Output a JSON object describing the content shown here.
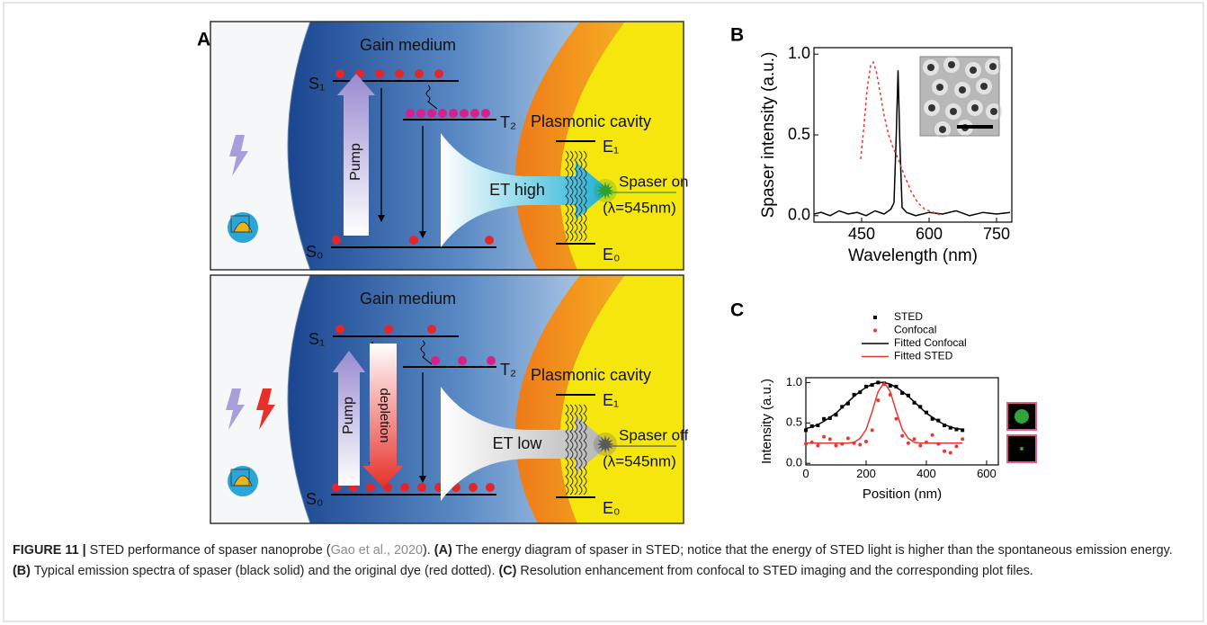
{
  "diagram": {
    "panel": "A",
    "top": {
      "gain_medium": "Gain medium",
      "s1": "S₁",
      "t2": "T₂",
      "s0": "S₀",
      "pump": "Pump",
      "et": "ET high",
      "cavity": "Plasmonic cavity",
      "e1": "E₁",
      "e0": "E₀",
      "spaser": "Spaser on",
      "wavelength": "(λ=545nm)"
    },
    "bottom": {
      "gain_medium": "Gain medium",
      "s1": "S₁",
      "t2": "T₂",
      "s0": "S₀",
      "pump": "Pump",
      "depletion": "depletion",
      "et": "ET low",
      "cavity": "Plasmonic cavity",
      "e1": "E₁",
      "e0": "E₀",
      "spaser": "Spaser off",
      "wavelength": "(λ=545nm)"
    }
  },
  "chart_data": [
    {
      "type": "line",
      "panel": "B",
      "x_label": "Wavelength (nm)",
      "y_label": "Spaser intensity (a.u.)",
      "xlim": [
        344,
        784
      ],
      "ylim": [
        -0.04,
        1.04
      ],
      "xticks": [
        450,
        600,
        750
      ],
      "yticks": [
        {
          "value": 0,
          "label": "0.0"
        },
        0.5,
        {
          "value": 1,
          "label": "1.0"
        }
      ],
      "legend": false,
      "series": [
        {
          "kind": "line",
          "color": "#000000",
          "dash": false,
          "x": [
            344,
            360,
            380,
            400,
            420,
            440,
            460,
            480,
            500,
            515,
            522,
            527,
            531,
            535,
            540,
            550,
            570,
            600,
            630,
            660,
            690,
            720,
            750,
            780
          ],
          "values": [
            0.01,
            0.02,
            0.0,
            0.03,
            0.01,
            0.02,
            0.0,
            0.03,
            0.01,
            0.04,
            0.08,
            0.5,
            0.9,
            0.45,
            0.05,
            0.02,
            0.0,
            0.02,
            0.01,
            0.03,
            0.0,
            0.02,
            0.01,
            0.02
          ]
        },
        {
          "kind": "line",
          "color": "#e8382f",
          "dash": true,
          "x": [
            448,
            455,
            462,
            470,
            476,
            482,
            490,
            500,
            510,
            520,
            530,
            545,
            560,
            575,
            590,
            610,
            630
          ],
          "values": [
            0.35,
            0.55,
            0.78,
            0.93,
            0.95,
            0.9,
            0.78,
            0.62,
            0.5,
            0.42,
            0.36,
            0.25,
            0.15,
            0.08,
            0.04,
            0.02,
            0.0
          ]
        }
      ]
    },
    {
      "type": "line",
      "panel": "C",
      "x_label": "Position (nm)",
      "y_label": "Intensity (a.u.)",
      "xlim": [
        0,
        639
      ],
      "ylim": [
        -0.02,
        1.06
      ],
      "xticks": [
        0,
        200,
        400,
        600
      ],
      "yticks": [
        {
          "value": 0,
          "label": "0.0"
        },
        0.5,
        {
          "value": 1,
          "label": "1.0"
        }
      ],
      "legend": true,
      "x": [
        0,
        20,
        40,
        60,
        80,
        100,
        120,
        140,
        160,
        180,
        200,
        220,
        240,
        260,
        280,
        300,
        320,
        340,
        360,
        380,
        400,
        420,
        440,
        460,
        480,
        500,
        520
      ],
      "series": [
        {
          "name": "STED",
          "kind": "scatter",
          "marker": "square",
          "color": "#000000",
          "values": [
            0.41,
            0.46,
            0.47,
            0.55,
            0.56,
            0.6,
            0.7,
            0.74,
            0.85,
            0.88,
            0.95,
            0.97,
            1.0,
            0.99,
            0.96,
            0.95,
            0.87,
            0.84,
            0.75,
            0.7,
            0.63,
            0.55,
            0.53,
            0.47,
            0.44,
            0.42,
            0.41
          ]
        },
        {
          "name": "Confocal",
          "kind": "scatter",
          "marker": "circle",
          "color": "#e8382f",
          "values": [
            0.24,
            0.26,
            0.22,
            0.33,
            0.3,
            0.22,
            0.24,
            0.31,
            0.25,
            0.23,
            0.27,
            0.41,
            0.78,
            0.98,
            0.85,
            0.55,
            0.34,
            0.25,
            0.3,
            0.22,
            0.26,
            0.35,
            0.24,
            0.15,
            0.13,
            0.21,
            0.3
          ]
        },
        {
          "name": "Fitted Confocal",
          "kind": "line",
          "color": "#000000",
          "dash": false,
          "values": [
            0.43,
            0.45,
            0.48,
            0.52,
            0.57,
            0.62,
            0.69,
            0.76,
            0.83,
            0.89,
            0.94,
            0.98,
            1.0,
            1.0,
            0.98,
            0.94,
            0.89,
            0.83,
            0.76,
            0.69,
            0.62,
            0.57,
            0.52,
            0.48,
            0.45,
            0.43,
            0.42
          ]
        },
        {
          "name": "Fitted STED",
          "kind": "line",
          "color": "#e8382f",
          "dash": false,
          "values": [
            0.25,
            0.25,
            0.25,
            0.25,
            0.25,
            0.25,
            0.25,
            0.25,
            0.26,
            0.31,
            0.42,
            0.64,
            0.89,
            1.0,
            0.89,
            0.64,
            0.42,
            0.31,
            0.26,
            0.25,
            0.25,
            0.25,
            0.25,
            0.25,
            0.25,
            0.25,
            0.25
          ]
        }
      ]
    }
  ],
  "caption": {
    "segments": [
      {
        "text": "FIGURE 11 |",
        "style": "bold"
      },
      {
        "text": " STED performance of spaser nanoprobe (",
        "style": "plain"
      },
      {
        "text": "Gao et al., 2020",
        "style": "link"
      },
      {
        "text": "). ",
        "style": "plain"
      },
      {
        "text": "(A)",
        "style": "bold"
      },
      {
        "text": " The energy diagram of spaser in STED; notice that the energy of STED light is higher than the spontaneous emission energy. ",
        "style": "plain"
      },
      {
        "text": "(B)",
        "style": "bold"
      },
      {
        "text": " Typical emission spectra of spaser (black solid) and the original dye (red dotted). ",
        "style": "plain"
      },
      {
        "text": "(C)",
        "style": "bold"
      },
      {
        "text": " Resolution enhancement from confocal to STED imaging and the corresponding plot files.",
        "style": "plain"
      }
    ]
  }
}
